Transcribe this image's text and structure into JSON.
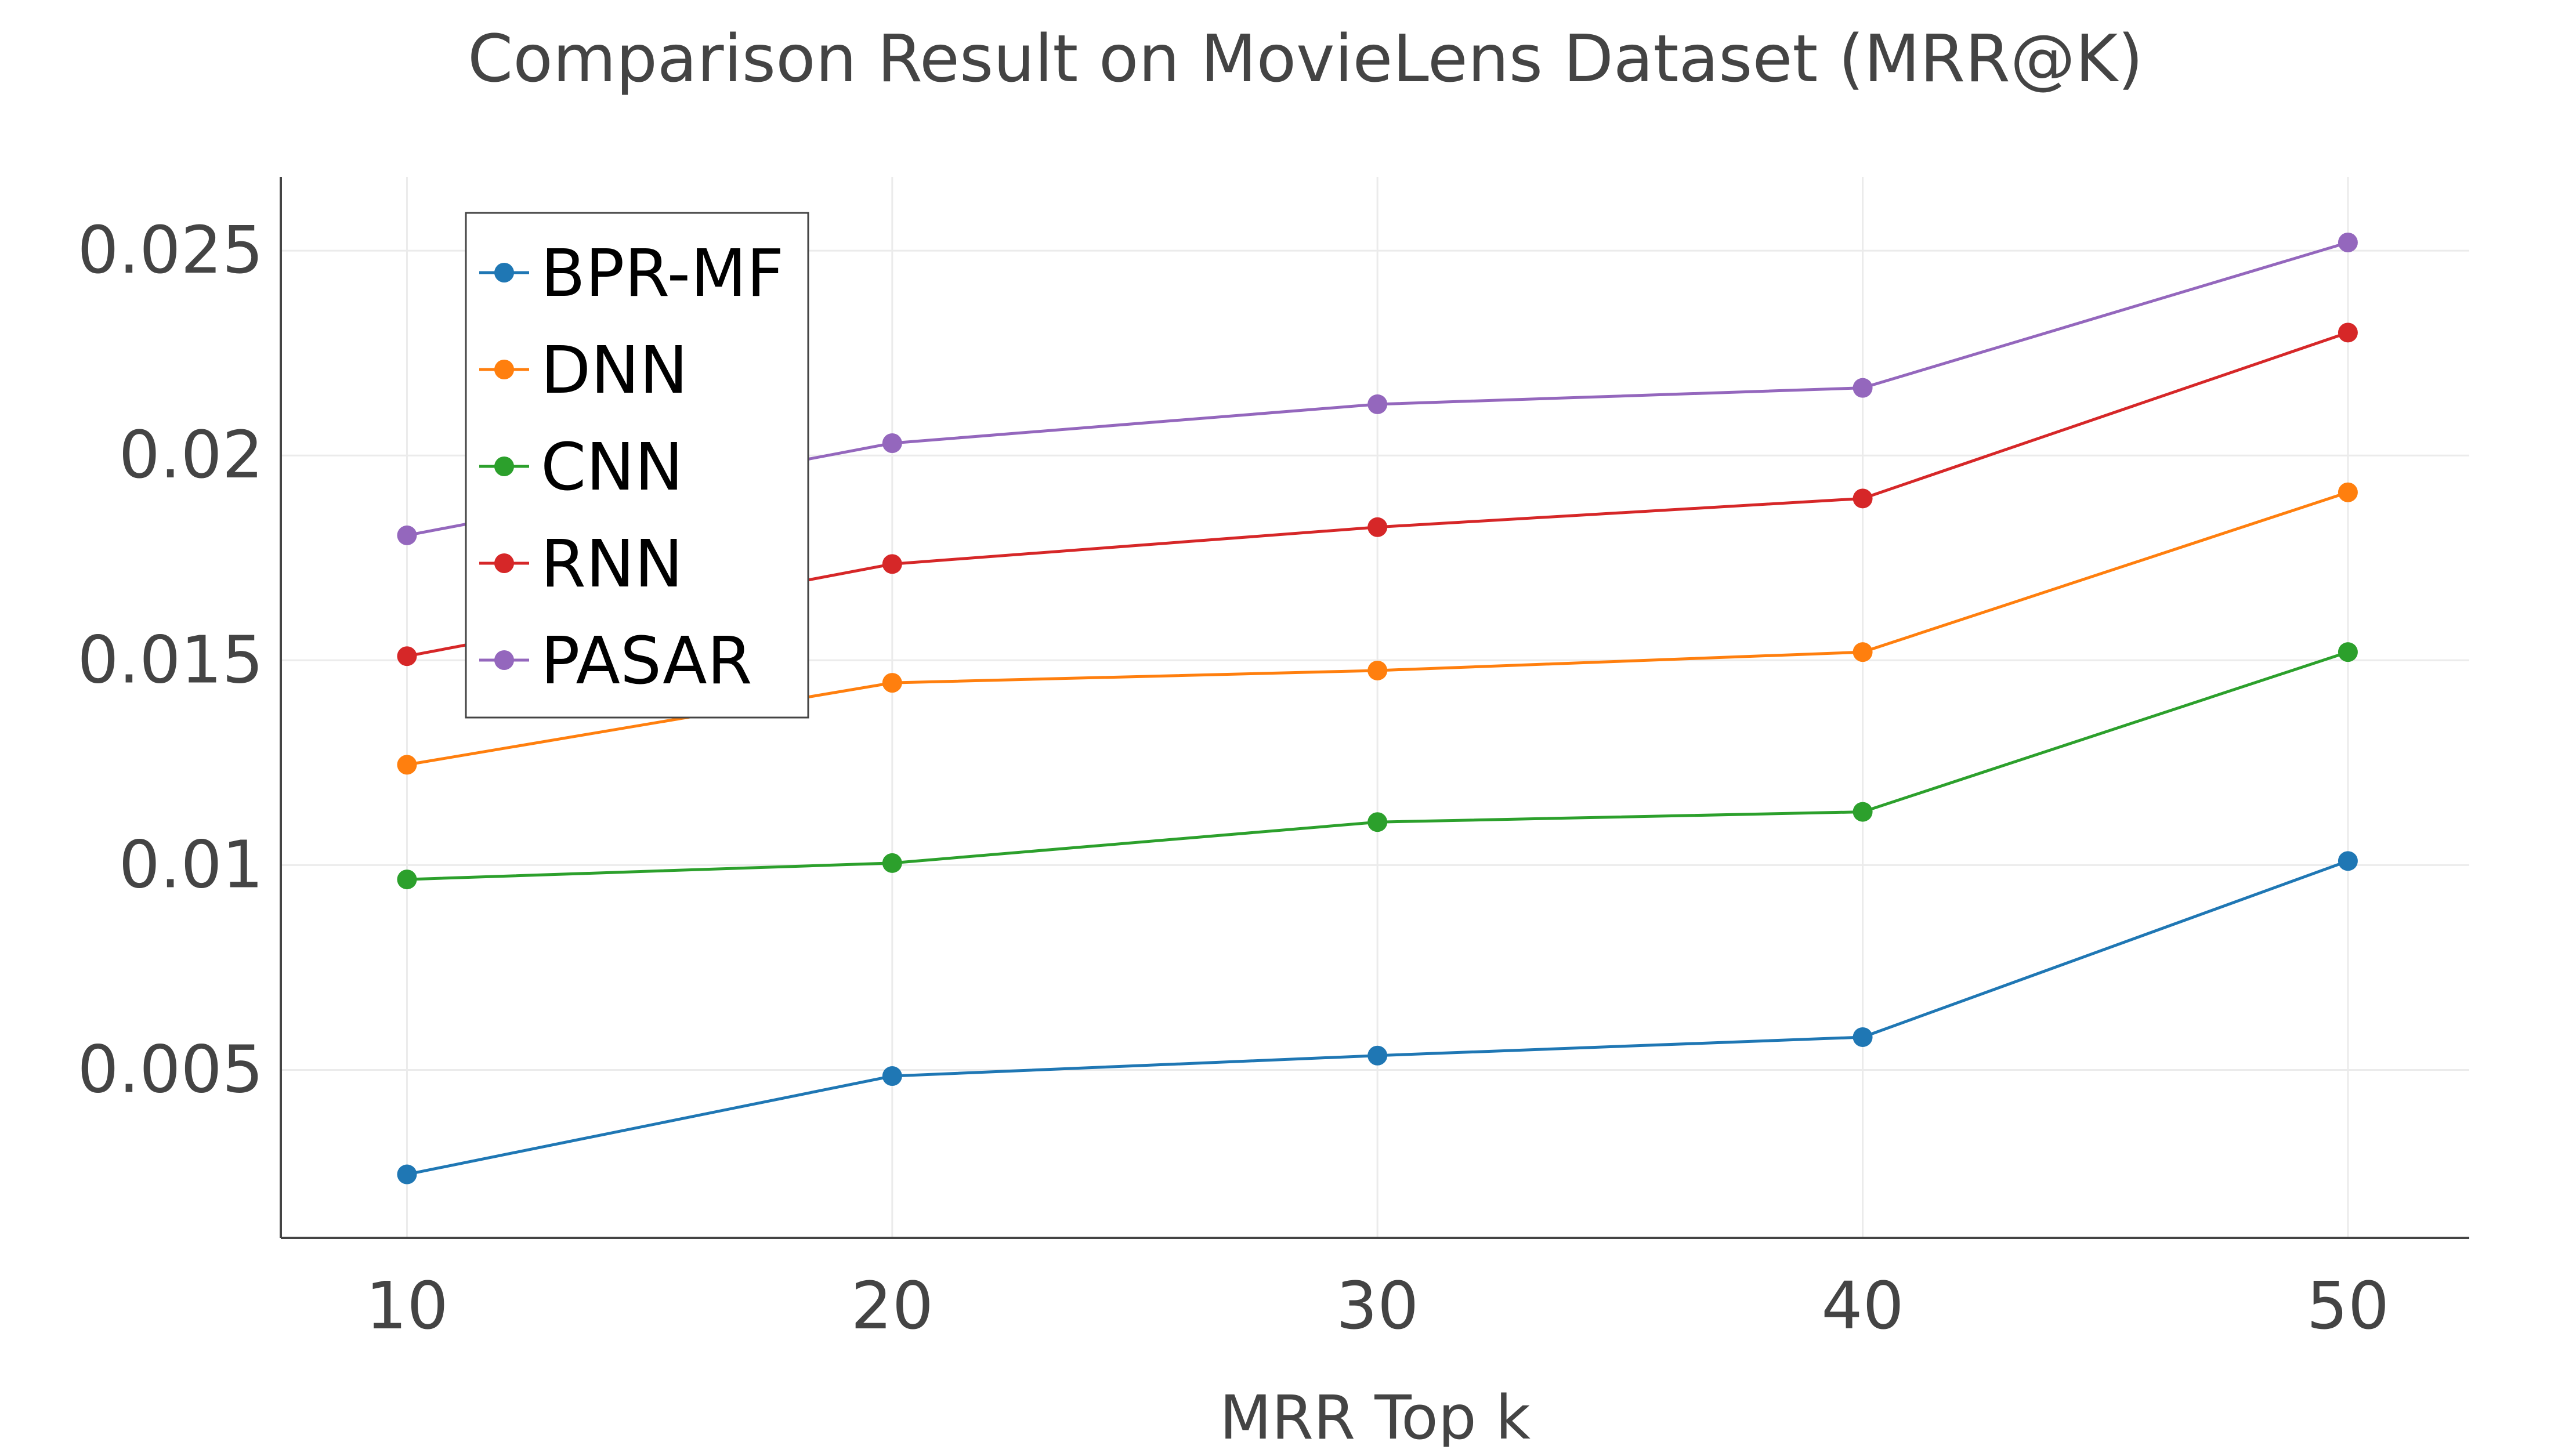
{
  "chart_data": {
    "type": "line",
    "title": "Comparison Result on MovieLens Dataset (MRR@K)",
    "xlabel": "MRR Top k",
    "ylabel": "",
    "x": [
      10,
      20,
      30,
      40,
      50
    ],
    "xticks": [
      "10",
      "20",
      "30",
      "40",
      "50"
    ],
    "yticks": [
      "0.005",
      "0.01",
      "0.015",
      "0.02",
      "0.025"
    ],
    "ytick_values": [
      0.005,
      0.01,
      0.015,
      0.02,
      0.025
    ],
    "xlim": [
      7.4,
      52.5
    ],
    "ylim": [
      0.0009,
      0.0268
    ],
    "grid": true,
    "legend_position": "top-left",
    "series": [
      {
        "name": "BPR-MF",
        "color": "#1f77b4",
        "values": [
          0.00245,
          0.00485,
          0.00535,
          0.0058,
          0.0101
        ]
      },
      {
        "name": "DNN",
        "color": "#ff7f0e",
        "values": [
          0.01245,
          0.01445,
          0.01475,
          0.0152,
          0.0191
        ]
      },
      {
        "name": "CNN",
        "color": "#2ca02c",
        "values": [
          0.00965,
          0.01005,
          0.01105,
          0.0113,
          0.0152
        ]
      },
      {
        "name": "RNN",
        "color": "#d62728",
        "values": [
          0.0151,
          0.01735,
          0.01825,
          0.01895,
          0.023
        ]
      },
      {
        "name": "PASAR",
        "color": "#9467bd",
        "values": [
          0.01805,
          0.0203,
          0.02125,
          0.02165,
          0.0252
        ]
      }
    ]
  }
}
